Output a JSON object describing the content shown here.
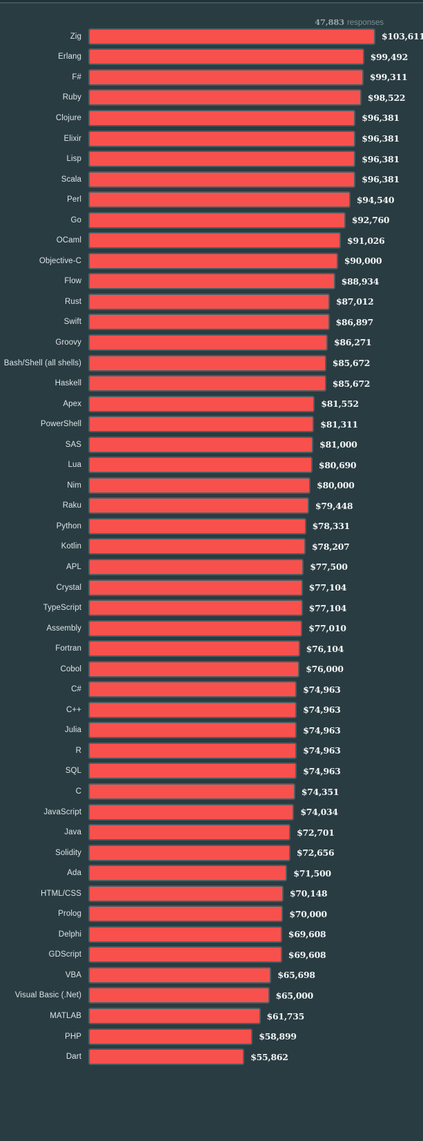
{
  "header": {
    "responses_count": "47,883",
    "responses_label": "responses"
  },
  "colors": {
    "background": "#293c42",
    "top_strip": "#203238",
    "top_strip_line": "#42555a",
    "bar_fill": "#f8514d",
    "bar_border": "#4b5d61",
    "category_label_text": "#dde4e5",
    "value_label_text": "#f3f6f6",
    "responses_count_text": "#95a7aa",
    "responses_word_text": "#7d9093"
  },
  "chart_data": {
    "type": "bar",
    "orientation": "horizontal",
    "title": "",
    "xlabel": "",
    "ylabel": "",
    "xlim": [
      0,
      103611
    ],
    "grid": false,
    "legend": false,
    "annotation": "47,883 responses",
    "categories": [
      "Zig",
      "Erlang",
      "F#",
      "Ruby",
      "Clojure",
      "Elixir",
      "Lisp",
      "Scala",
      "Perl",
      "Go",
      "OCaml",
      "Objective-C",
      "Flow",
      "Rust",
      "Swift",
      "Groovy",
      "Bash/Shell (all shells)",
      "Haskell",
      "Apex",
      "PowerShell",
      "SAS",
      "Lua",
      "Nim",
      "Raku",
      "Python",
      "Kotlin",
      "APL",
      "Crystal",
      "TypeScript",
      "Assembly",
      "Fortran",
      "Cobol",
      "C#",
      "C++",
      "Julia",
      "R",
      "SQL",
      "C",
      "JavaScript",
      "Java",
      "Solidity",
      "Ada",
      "HTML/CSS",
      "Prolog",
      "Delphi",
      "GDScript",
      "VBA",
      "Visual Basic (.Net)",
      "MATLAB",
      "PHP",
      "Dart"
    ],
    "values": [
      103611,
      99492,
      99311,
      98522,
      96381,
      96381,
      96381,
      96381,
      94540,
      92760,
      91026,
      90000,
      88934,
      87012,
      86897,
      86271,
      85672,
      85672,
      81552,
      81311,
      81000,
      80690,
      80000,
      79448,
      78331,
      78207,
      77500,
      77104,
      77104,
      77010,
      76104,
      76000,
      74963,
      74963,
      74963,
      74963,
      74963,
      74351,
      74034,
      72701,
      72656,
      71500,
      70148,
      70000,
      69608,
      69608,
      65698,
      65000,
      61735,
      58899,
      55862
    ],
    "value_labels": [
      "$103,611",
      "$99,492",
      "$99,311",
      "$98,522",
      "$96,381",
      "$96,381",
      "$96,381",
      "$96,381",
      "$94,540",
      "$92,760",
      "$91,026",
      "$90,000",
      "$88,934",
      "$87,012",
      "$86,897",
      "$86,271",
      "$85,672",
      "$85,672",
      "$81,552",
      "$81,311",
      "$81,000",
      "$80,690",
      "$80,000",
      "$79,448",
      "$78,331",
      "$78,207",
      "$77,500",
      "$77,104",
      "$77,104",
      "$77,010",
      "$76,104",
      "$76,000",
      "$74,963",
      "$74,963",
      "$74,963",
      "$74,963",
      "$74,963",
      "$74,351",
      "$74,034",
      "$72,701",
      "$72,656",
      "$71,500",
      "$70,148",
      "$70,000",
      "$69,608",
      "$69,608",
      "$65,698",
      "$65,000",
      "$61,735",
      "$58,899",
      "$55,862"
    ]
  }
}
